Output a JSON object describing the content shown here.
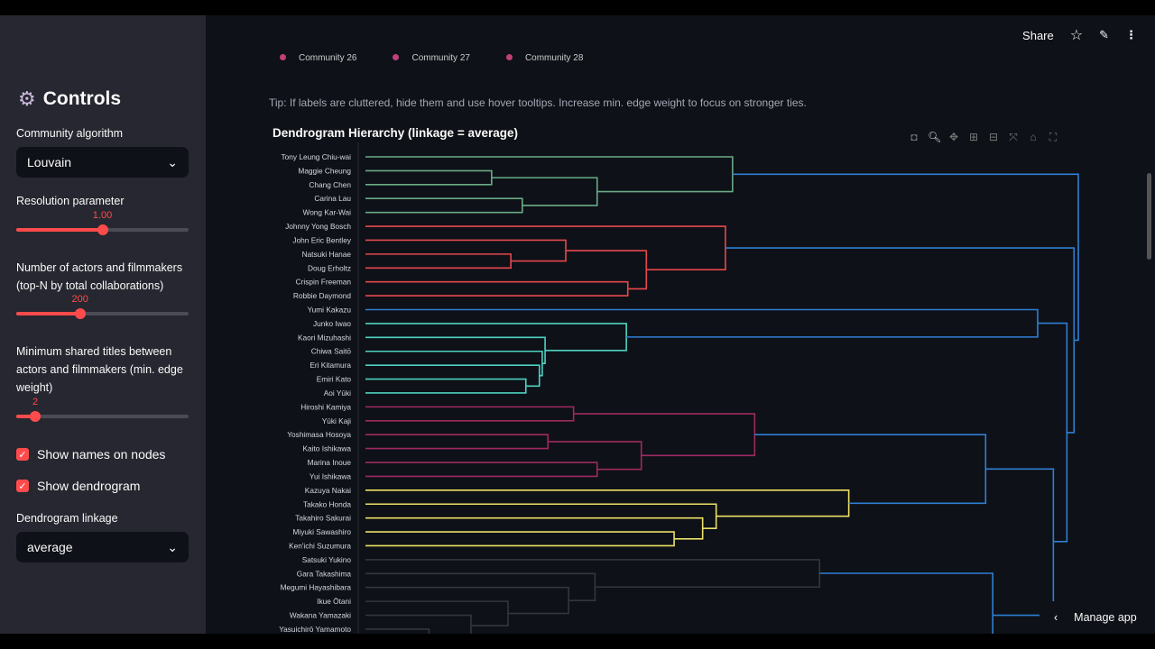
{
  "sidebar": {
    "title": "Controls",
    "algorithm_label": "Community algorithm",
    "algorithm_value": "Louvain",
    "resolution_label": "Resolution parameter",
    "resolution_value": "1.00",
    "resolution_fraction": 0.5,
    "topn_label": "Number of actors and filmmakers (top-N by total collaborations)",
    "topn_value": "200",
    "topn_fraction": 0.39,
    "minedge_label": "Minimum shared titles between actors and filmmakers (min. edge weight)",
    "minedge_value": "2",
    "minedge_fraction": 0.11,
    "show_names_label": "Show names on nodes",
    "show_names_checked": true,
    "show_dendro_label": "Show dendrogram",
    "show_dendro_checked": true,
    "linkage_label": "Dendrogram linkage",
    "linkage_value": "average"
  },
  "header": {
    "share": "Share"
  },
  "legend": [
    "Community 26",
    "Community 27",
    "Community 28"
  ],
  "tip": "Tip: If labels are cluttered, hide them and use hover tooltips. Increase min. edge weight to focus on stronger ties.",
  "manage_app": "Manage app",
  "chart_data": {
    "type": "dendrogram",
    "title": "Dendrogram Hierarchy (linkage = average)",
    "colors": {
      "green": "#6aab86",
      "red": "#e5484d",
      "blue": "#2f7fd4",
      "teal": "#4fd2c2",
      "magenta": "#9e2a60",
      "yellow": "#ece066",
      "gray": "#34363b"
    },
    "leaves": [
      "Tony Leung Chiu-wai",
      "Maggie Cheung",
      "Chang Chen",
      "Carina Lau",
      "Wong Kar-Wai",
      "Johnny Yong Bosch",
      "John Eric Bentley",
      "Natsuki Hanae",
      "Doug Erholtz",
      "Crispin Freeman",
      "Robbie Daymond",
      "Yumi Kakazu",
      "Junko Iwao",
      "Kaori Mizuhashi",
      "Chiwa Saitō",
      "Eri Kitamura",
      "Emiri Kato",
      "Aoi Yūki",
      "Hiroshi Kamiya",
      "Yūki Kaji",
      "Yoshimasa Hosoya",
      "Kaito Ishikawa",
      "Marina Inoue",
      "Yui Ishikawa",
      "Kazuya Nakai",
      "Takako Honda",
      "Takahiro Sakurai",
      "Miyuki Sawashiro",
      "Ken'ichi Suzumura",
      "Satsuki Yukino",
      "Gara Takashima",
      "Megumi Hayashibara",
      "Ikue Ōtani",
      "Wakana Yamazaki",
      "Yasuichirō Yamamoto"
    ],
    "links": [
      {
        "a": 1,
        "b": 2,
        "da": 0,
        "db": 0,
        "h": 0.177,
        "c": "green"
      },
      {
        "a": 3,
        "b": 4,
        "da": 0,
        "db": 0,
        "h": 0.22,
        "c": "green"
      },
      {
        "a": 1.5,
        "b": 3.5,
        "da": 0.177,
        "db": 0.22,
        "h": 0.325,
        "c": "green"
      },
      {
        "a": 0,
        "b": 2.5,
        "da": 0,
        "db": 0.325,
        "h": 0.515,
        "c": "green"
      },
      {
        "a": 7,
        "b": 8,
        "da": 0,
        "db": 0,
        "h": 0.204,
        "c": "red"
      },
      {
        "a": 6,
        "b": 7.5,
        "da": 0,
        "db": 0.204,
        "h": 0.281,
        "c": "red"
      },
      {
        "a": 9,
        "b": 10,
        "da": 0,
        "db": 0,
        "h": 0.368,
        "c": "red"
      },
      {
        "a": 6.75,
        "b": 9.5,
        "da": 0.281,
        "db": 0.368,
        "h": 0.394,
        "c": "red"
      },
      {
        "a": 5,
        "b": 8.125,
        "da": 0,
        "db": 0.394,
        "h": 0.505,
        "c": "red"
      },
      {
        "a": 16,
        "b": 17,
        "da": 0,
        "db": 0,
        "h": 0.225,
        "c": "teal"
      },
      {
        "a": 15,
        "b": 16.5,
        "da": 0,
        "db": 0.225,
        "h": 0.244,
        "c": "teal"
      },
      {
        "a": 14,
        "b": 15.75,
        "da": 0,
        "db": 0.244,
        "h": 0.248,
        "c": "teal"
      },
      {
        "a": 13,
        "b": 14.875,
        "da": 0,
        "db": 0.248,
        "h": 0.252,
        "c": "teal"
      },
      {
        "a": 12,
        "b": 13.94,
        "da": 0,
        "db": 0.252,
        "h": 0.366,
        "c": "teal"
      },
      {
        "a": 11,
        "b": 12.97,
        "da": 0,
        "db": 0.366,
        "h": 0.943,
        "c": "blue"
      },
      {
        "a": 18,
        "b": 19,
        "da": 0,
        "db": 0,
        "h": 0.292,
        "c": "magenta"
      },
      {
        "a": 20,
        "b": 21,
        "da": 0,
        "db": 0,
        "h": 0.256,
        "c": "magenta"
      },
      {
        "a": 22,
        "b": 23,
        "da": 0,
        "db": 0,
        "h": 0.325,
        "c": "magenta"
      },
      {
        "a": 20.5,
        "b": 22.5,
        "da": 0.256,
        "db": 0.325,
        "h": 0.387,
        "c": "magenta"
      },
      {
        "a": 18.5,
        "b": 21.5,
        "da": 0.292,
        "db": 0.387,
        "h": 0.546,
        "c": "magenta"
      },
      {
        "a": 27,
        "b": 28,
        "da": 0,
        "db": 0,
        "h": 0.433,
        "c": "yellow"
      },
      {
        "a": 26,
        "b": 27.5,
        "da": 0,
        "db": 0.433,
        "h": 0.473,
        "c": "yellow"
      },
      {
        "a": 25,
        "b": 26.75,
        "da": 0,
        "db": 0.473,
        "h": 0.492,
        "c": "yellow"
      },
      {
        "a": 24,
        "b": 25.875,
        "da": 0,
        "db": 0.492,
        "h": 0.678,
        "c": "yellow"
      },
      {
        "a": 20,
        "b": 24.94,
        "da": 0.546,
        "db": 0.678,
        "h": 0.87,
        "c": "blue"
      },
      {
        "a": 34,
        "b": 35,
        "da": 0,
        "db": 0,
        "h": 0.089,
        "c": "gray"
      },
      {
        "a": 33,
        "b": 34.5,
        "da": 0,
        "db": 0.089,
        "h": 0.148,
        "c": "gray"
      },
      {
        "a": 32,
        "b": 33.75,
        "da": 0,
        "db": 0.148,
        "h": 0.2,
        "c": "gray"
      },
      {
        "a": 31,
        "b": 32.875,
        "da": 0,
        "db": 0.2,
        "h": 0.285,
        "c": "gray"
      },
      {
        "a": 30,
        "b": 31.94,
        "da": 0,
        "db": 0.285,
        "h": 0.322,
        "c": "gray"
      },
      {
        "a": 29,
        "b": 30.97,
        "da": 0,
        "db": 0.322,
        "h": 0.637,
        "c": "gray"
      },
      {
        "a": 29.98,
        "b": 36,
        "da": 0.637,
        "db": 0.3,
        "h": 0.88,
        "c": "blue"
      },
      {
        "a": 22.47,
        "b": 33,
        "da": 0.87,
        "db": 0.88,
        "h": 0.965,
        "c": "blue"
      },
      {
        "a": 11.98,
        "b": 27.7,
        "da": 0.943,
        "db": 0.965,
        "h": 0.984,
        "c": "blue"
      },
      {
        "a": 6.56,
        "b": 19.85,
        "da": 0.505,
        "db": 0.984,
        "h": 0.994,
        "c": "blue"
      },
      {
        "a": 1.25,
        "b": 13.2,
        "da": 0.515,
        "db": 0.994,
        "h": 1.0,
        "c": "blue"
      }
    ]
  }
}
